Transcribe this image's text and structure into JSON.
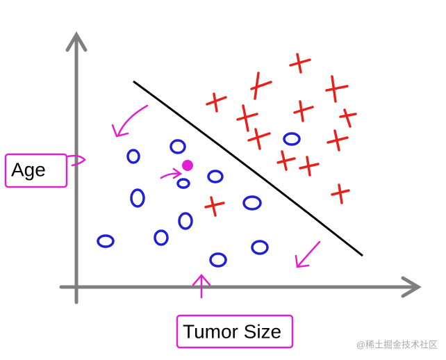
{
  "labels": {
    "y_axis": "Age",
    "x_axis": "Tumor Size"
  },
  "watermark": "@稀土掘金技术社区"
}
